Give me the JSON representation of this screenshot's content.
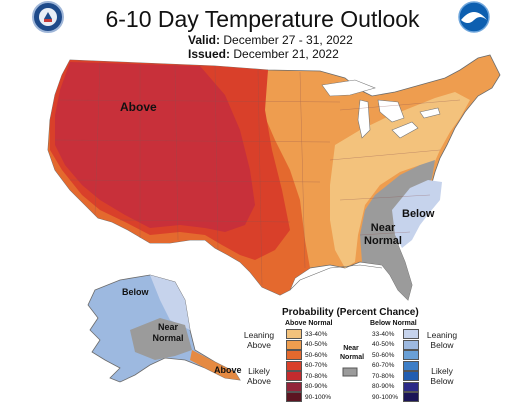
{
  "header": {
    "title": "6-10 Day Temperature Outlook",
    "valid_label": "Valid:",
    "valid_value": "December 27 - 31, 2022",
    "issued_label": "Issued:",
    "issued_value": "December 21, 2022"
  },
  "logos": {
    "left": "commerce-seal-icon",
    "right": "noaa-logo-icon"
  },
  "map": {
    "regions": [
      {
        "label": "Above",
        "category": "Above Normal 70-80%",
        "color": "#d12d2d"
      },
      {
        "label": "Near Normal",
        "category": "Near Normal",
        "color": "#9b9b9b"
      },
      {
        "label": "Below",
        "category": "Below Normal 33-40%",
        "color": "#c6d3ec"
      },
      {
        "label": "Below",
        "category": "Alaska Below Normal 40-50%",
        "color": "#9db9e0"
      },
      {
        "label": "Near Normal",
        "category": "Alaska Near Normal",
        "color": "#9b9b9b"
      },
      {
        "label": "Above",
        "category": "Alaska Panhandle Above",
        "color": "#e58a42"
      }
    ]
  },
  "legend": {
    "title": "Probability (Percent Chance)",
    "above_header": "Above Normal",
    "below_header": "Below Normal",
    "near_label": "Near Normal",
    "near_color": "#9b9b9b",
    "leaning_above": "Leaning Above",
    "likely_above": "Likely Above",
    "leaning_below": "Leaning Below",
    "likely_below": "Likely Below",
    "above": [
      {
        "range": "33-40%",
        "color": "#f3c27c"
      },
      {
        "range": "40-50%",
        "color": "#ee9d4f"
      },
      {
        "range": "50-60%",
        "color": "#e4692e"
      },
      {
        "range": "60-70%",
        "color": "#d9402a"
      },
      {
        "range": "70-80%",
        "color": "#c42b2e"
      },
      {
        "range": "80-90%",
        "color": "#92243a"
      },
      {
        "range": "90-100%",
        "color": "#5c1522"
      }
    ],
    "below": [
      {
        "range": "33-40%",
        "color": "#c6d3ec"
      },
      {
        "range": "40-50%",
        "color": "#9db9e0"
      },
      {
        "range": "50-60%",
        "color": "#6aa0d6"
      },
      {
        "range": "60-70%",
        "color": "#3e7ec6"
      },
      {
        "range": "70-80%",
        "color": "#225db0"
      },
      {
        "range": "80-90%",
        "color": "#2c2a86"
      },
      {
        "range": "90-100%",
        "color": "#1b1556"
      }
    ]
  }
}
